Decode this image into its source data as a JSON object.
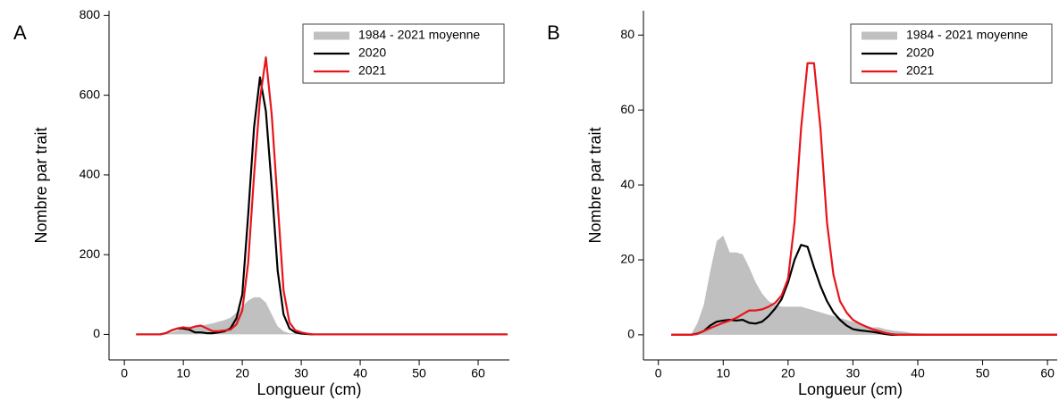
{
  "chart_data": [
    {
      "type": "line",
      "panel": "A",
      "xlabel": "Longueur (cm)",
      "ylabel": "Nombre par trait",
      "x": [
        2,
        3,
        4,
        5,
        6,
        7,
        8,
        9,
        10,
        11,
        12,
        13,
        14,
        15,
        16,
        17,
        18,
        19,
        20,
        21,
        22,
        23,
        24,
        25,
        26,
        27,
        28,
        29,
        30,
        31,
        32,
        33,
        34,
        35,
        36,
        37,
        38,
        39,
        40,
        45,
        50,
        55,
        65
      ],
      "series": [
        {
          "name": "1984 - 2021 moyenne",
          "kind": "area",
          "color": "#c0c0c0",
          "values": [
            0,
            0,
            0,
            0,
            0,
            2,
            5,
            10,
            18,
            20,
            20,
            22,
            25,
            28,
            32,
            36,
            42,
            55,
            70,
            85,
            93,
            93,
            80,
            50,
            20,
            8,
            3,
            2,
            1,
            1,
            0.5,
            0.5,
            0,
            0,
            0,
            0,
            0,
            0,
            0,
            0,
            0,
            0,
            0
          ]
        },
        {
          "name": "2020",
          "kind": "line",
          "color": "#000000",
          "values": [
            0,
            0,
            0,
            0,
            0,
            3,
            10,
            15,
            15,
            12,
            5,
            5,
            3,
            3,
            5,
            8,
            15,
            40,
            100,
            300,
            520,
            645,
            560,
            370,
            160,
            50,
            15,
            5,
            2,
            1,
            0,
            0,
            0,
            0,
            0,
            0,
            0,
            0,
            0,
            0,
            0,
            0,
            0
          ]
        },
        {
          "name": "2021",
          "kind": "line",
          "color": "#e8141b",
          "values": [
            0,
            0,
            0,
            0,
            0,
            3,
            10,
            15,
            18,
            15,
            20,
            22,
            15,
            8,
            8,
            10,
            12,
            25,
            60,
            180,
            400,
            590,
            695,
            550,
            330,
            110,
            30,
            10,
            5,
            2,
            0,
            0,
            0,
            0,
            0,
            0,
            0,
            0,
            0,
            0,
            0,
            0,
            0
          ]
        }
      ],
      "xlim": [
        -2.6,
        65.3
      ],
      "ylim": [
        -64,
        812
      ],
      "xticks": [
        0,
        10,
        20,
        30,
        40,
        50,
        60
      ],
      "yticks": [
        0,
        200,
        400,
        600,
        800
      ],
      "legend": "upper right"
    },
    {
      "type": "line",
      "panel": "B",
      "xlabel": "Longueur (cm)",
      "ylabel": "Nombre par trait",
      "x": [
        2,
        3,
        4,
        5,
        6,
        7,
        8,
        9,
        10,
        11,
        12,
        13,
        14,
        15,
        16,
        17,
        18,
        19,
        20,
        21,
        22,
        23,
        24,
        25,
        26,
        27,
        28,
        29,
        30,
        31,
        32,
        33,
        34,
        35,
        36,
        37,
        38,
        39,
        40,
        45,
        50,
        55,
        61.5
      ],
      "series": [
        {
          "name": "1984 - 2021 moyenne",
          "kind": "area",
          "color": "#c0c0c0",
          "values": [
            0,
            0,
            0,
            0,
            3,
            8,
            17,
            25,
            26.5,
            22,
            22,
            21.5,
            18,
            14,
            11,
            9,
            8,
            7.5,
            7.5,
            7.5,
            7.5,
            7,
            6.5,
            6,
            5.5,
            5,
            4.5,
            4,
            3.5,
            3,
            2.5,
            2,
            2,
            1.5,
            1.2,
            1,
            0.8,
            0.5,
            0.4,
            0.1,
            0,
            0,
            0
          ]
        },
        {
          "name": "2020",
          "kind": "line",
          "color": "#000000",
          "values": [
            0,
            0,
            0,
            0,
            0.3,
            1,
            2.5,
            3.5,
            3.8,
            4,
            3.8,
            4,
            3.2,
            3,
            3.5,
            5,
            7,
            9.5,
            14,
            20,
            24,
            23.5,
            18,
            13,
            9,
            6,
            4,
            2.5,
            1.5,
            1.2,
            1,
            0.8,
            0.5,
            0.2,
            0,
            0,
            0,
            0,
            0,
            0,
            0,
            0,
            0
          ]
        },
        {
          "name": "2021",
          "kind": "line",
          "color": "#e8141b",
          "values": [
            0,
            0,
            0,
            0,
            0.2,
            1,
            1.8,
            2.5,
            3.2,
            3.8,
            4.5,
            5.5,
            6.5,
            6.5,
            6.8,
            7.5,
            8.5,
            10.5,
            15,
            30,
            55,
            72.5,
            72.5,
            55,
            30,
            16,
            9,
            6,
            4,
            3,
            2.2,
            1.5,
            1,
            0.5,
            0.2,
            0,
            0,
            0,
            0,
            0,
            0,
            0,
            0
          ]
        }
      ],
      "xlim": [
        -2.3,
        61.5
      ],
      "ylim": [
        -6.7,
        86.5
      ],
      "xticks": [
        0,
        10,
        20,
        30,
        40,
        50,
        60
      ],
      "yticks": [
        0,
        20,
        40,
        60,
        80
      ],
      "legend": "upper right"
    }
  ]
}
